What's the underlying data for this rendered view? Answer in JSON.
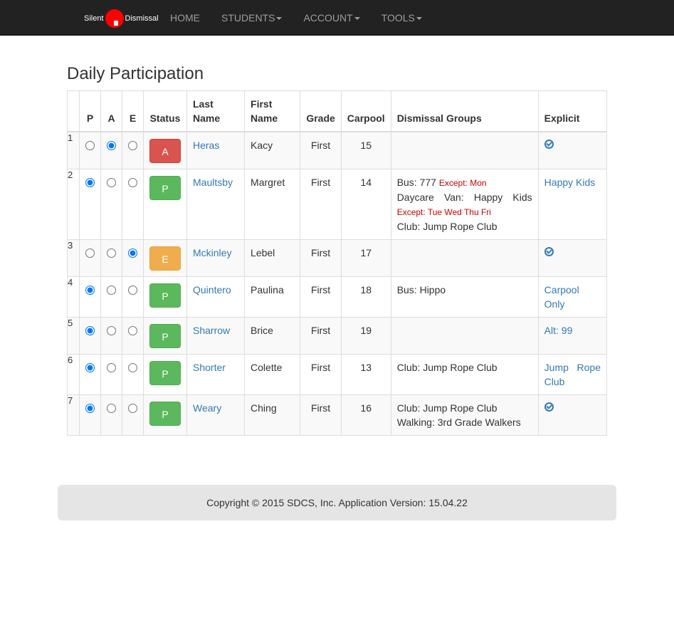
{
  "nav": {
    "logo_left": "Silent",
    "logo_right": "Dismissal",
    "items": [
      {
        "label": "HOME",
        "dropdown": false
      },
      {
        "label": "STUDENTS",
        "dropdown": true
      },
      {
        "label": "ACCOUNT",
        "dropdown": true
      },
      {
        "label": "TOOLS",
        "dropdown": true
      }
    ]
  },
  "page_title": "Daily Participation",
  "table": {
    "headers": [
      "P",
      "A",
      "E",
      "Status",
      "Last Name",
      "First Name",
      "Grade",
      "Carpool",
      "Dismissal Groups",
      "Explicit"
    ],
    "rows": [
      {
        "num": "1",
        "sel": "A",
        "status": "A",
        "last": "Heras",
        "first": "Kacy",
        "grade": "First",
        "carpool": "15",
        "groups": [],
        "explicit": "check"
      },
      {
        "num": "2",
        "sel": "P",
        "status": "P",
        "last": "Maultsby",
        "first": "Margret",
        "grade": "First",
        "carpool": "14",
        "groups": [
          {
            "text": "Bus: 777",
            "except": "Except: Mon"
          },
          {
            "text": "Daycare Van: Happy Kids",
            "except": "Except: Tue Wed Thu Fri"
          },
          {
            "text": "Club: Jump Rope Club",
            "except": ""
          }
        ],
        "explicit": "Happy Kids"
      },
      {
        "num": "3",
        "sel": "E",
        "status": "E",
        "last": "Mckinley",
        "first": "Lebel",
        "grade": "First",
        "carpool": "17",
        "groups": [],
        "explicit": "check"
      },
      {
        "num": "4",
        "sel": "P",
        "status": "P",
        "last": "Quintero",
        "first": "Paulina",
        "grade": "First",
        "carpool": "18",
        "groups": [
          {
            "text": "Bus: Hippo",
            "except": ""
          }
        ],
        "explicit": "Carpool Only"
      },
      {
        "num": "5",
        "sel": "P",
        "status": "P",
        "last": "Sharrow",
        "first": "Brice",
        "grade": "First",
        "carpool": "19",
        "groups": [],
        "explicit": "Alt: 99"
      },
      {
        "num": "6",
        "sel": "P",
        "status": "P",
        "last": "Shorter",
        "first": "Colette",
        "grade": "First",
        "carpool": "13",
        "groups": [
          {
            "text": "Club: Jump Rope Club",
            "except": ""
          }
        ],
        "explicit": "Jump Rope Club"
      },
      {
        "num": "7",
        "sel": "P",
        "status": "P",
        "last": "Weary",
        "first": "Ching",
        "grade": "First",
        "carpool": "16",
        "groups": [
          {
            "text": "Club: Jump Rope Club",
            "except": ""
          },
          {
            "text": "Walking: 3rd Grade Walkers",
            "except": ""
          }
        ],
        "explicit": "check"
      }
    ]
  },
  "footer": "Copyright © 2015 SDCS, Inc. Application Version: 15.04.22",
  "colors": {
    "absent": "#d9534f",
    "present": "#5cb85c",
    "excused": "#f0ad4e",
    "link": "#337ab7",
    "except": "#cc0000"
  }
}
